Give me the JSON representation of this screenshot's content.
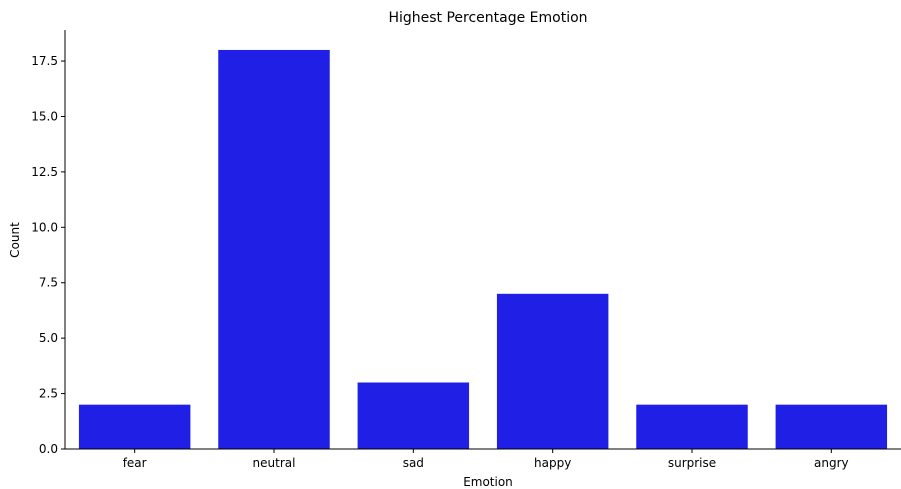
{
  "chart_data": {
    "type": "bar",
    "title": "Highest Percentage Emotion",
    "xlabel": "Emotion",
    "ylabel": "Count",
    "categories": [
      "fear",
      "neutral",
      "sad",
      "happy",
      "surprise",
      "angry"
    ],
    "values": [
      2,
      18,
      3,
      7,
      2,
      2
    ],
    "yticks": [
      "0.0",
      "2.5",
      "5.0",
      "7.5",
      "10.0",
      "12.5",
      "15.0",
      "17.5"
    ],
    "ylim": [
      0,
      18.9
    ],
    "grid": false,
    "bar_color": "#1f1fe5"
  }
}
